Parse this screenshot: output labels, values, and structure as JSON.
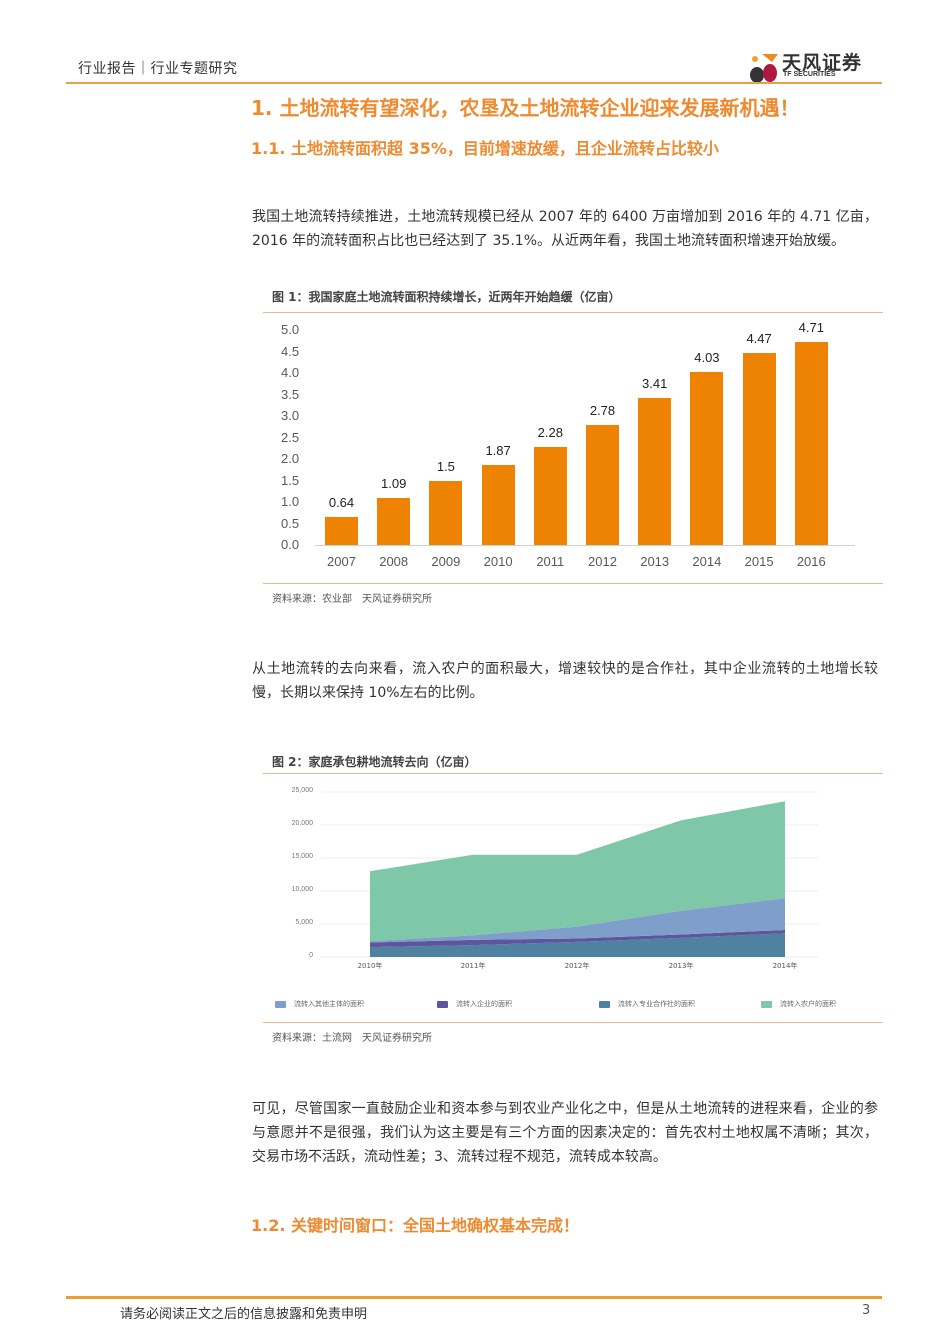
{
  "header": {
    "category": "行业报告｜行业专题研究",
    "logo_cn": "天风证券",
    "logo_en": "TF SECURITIES"
  },
  "headings": {
    "h1": "1. 土地流转有望深化，农垦及土地流转企业迎来发展新机遇！",
    "h1_1": "1.1. 土地流转面积超 35%，目前增速放缓，且企业流转占比较小",
    "h1_2": "1.2. 关键时间窗口：全国土地确权基本完成！"
  },
  "paragraphs": {
    "p1": "我国土地流转持续推进，土地流转规模已经从 2007 年的 6400 万亩增加到 2016 年的 4.71 亿亩，2016 年的流转面积占比也已经达到了 35.1%。从近两年看，我国土地流转面积增速开始放缓。",
    "p2": "从土地流转的去向来看，流入农户的面积最大，增速较快的是合作社，其中企业流转的土地增长较慢，长期以来保持 10%左右的比例。",
    "p3": "可见，尽管国家一直鼓励企业和资本参与到农业产业化之中，但是从土地流转的进程来看，企业的参与意愿并不是很强，我们认为这主要是有三个方面的因素决定的：首先农村土地权属不清晰；其次，交易市场不活跃，流动性差；3、流转过程不规范，流转成本较高。"
  },
  "figure1": {
    "title": "图 1：我国家庭土地流转面积持续增长，近两年开始趋缓（亿亩）",
    "source": "资料来源：农业部　天风证券研究所"
  },
  "figure2": {
    "title": "图 2：家庭承包耕地流转去向（亿亩）",
    "source": "资料来源：土流网　天风证券研究所"
  },
  "chart_data": [
    {
      "type": "bar",
      "title": "图 1：我国家庭土地流转面积持续增长，近两年开始趋缓（亿亩）",
      "categories": [
        "2007",
        "2008",
        "2009",
        "2010",
        "2011",
        "2012",
        "2013",
        "2014",
        "2015",
        "2016"
      ],
      "values": [
        0.64,
        1.09,
        1.5,
        1.87,
        2.28,
        2.78,
        3.41,
        4.03,
        4.47,
        4.71
      ],
      "value_labels": [
        "0.64",
        "1.09",
        "1.5",
        "1.87",
        "2.28",
        "2.78",
        "3.41",
        "4.03",
        "4.47",
        "4.71"
      ],
      "yticks": [
        "5.0",
        "4.5",
        "4.0",
        "3.5",
        "3.0",
        "2.5",
        "2.0",
        "1.5",
        "1.0",
        "0.5",
        "0.0"
      ],
      "ylim": [
        0,
        5.0
      ],
      "xlabel": "",
      "ylabel": "",
      "grid": false,
      "color": "#ee8203"
    },
    {
      "type": "area",
      "stacked": true,
      "title": "图 2：家庭承包耕地流转去向（亿亩）",
      "categories": [
        "2010年",
        "2011年",
        "2012年",
        "2013年",
        "2014年"
      ],
      "series": [
        {
          "name": "流转入专业合作社的面积",
          "color": "#4f81a0",
          "values": [
            1500,
            1800,
            2300,
            2900,
            3600
          ]
        },
        {
          "name": "流转入企业的面积",
          "color": "#5f559d",
          "values": [
            700,
            800,
            500,
            500,
            500
          ]
        },
        {
          "name": "流转入其他主体的面积",
          "color": "#7f9fcb",
          "values": [
            200,
            700,
            1800,
            3600,
            4800
          ]
        },
        {
          "name": "流转入农户的面积",
          "color": "#7fc7a9",
          "values": [
            10600,
            12200,
            10900,
            13700,
            14700
          ]
        }
      ],
      "legend": [
        "流转入其他主体的面积",
        "流转入企业的面积",
        "流转入专业合作社的面积",
        "流转入农户的面积"
      ],
      "legend_colors": [
        "#7f9fcb",
        "#5f559d",
        "#4f81a0",
        "#7fc7a9"
      ],
      "yticks": [
        "25,000",
        "20,000",
        "15,000",
        "10,000",
        "5,000",
        "0"
      ],
      "ylim": [
        0,
        25000
      ],
      "grid": true,
      "legend_position": "bottom"
    }
  ],
  "footer": {
    "disclaimer": "请务必阅读正文之后的信息披露和免责申明",
    "page": "3"
  }
}
